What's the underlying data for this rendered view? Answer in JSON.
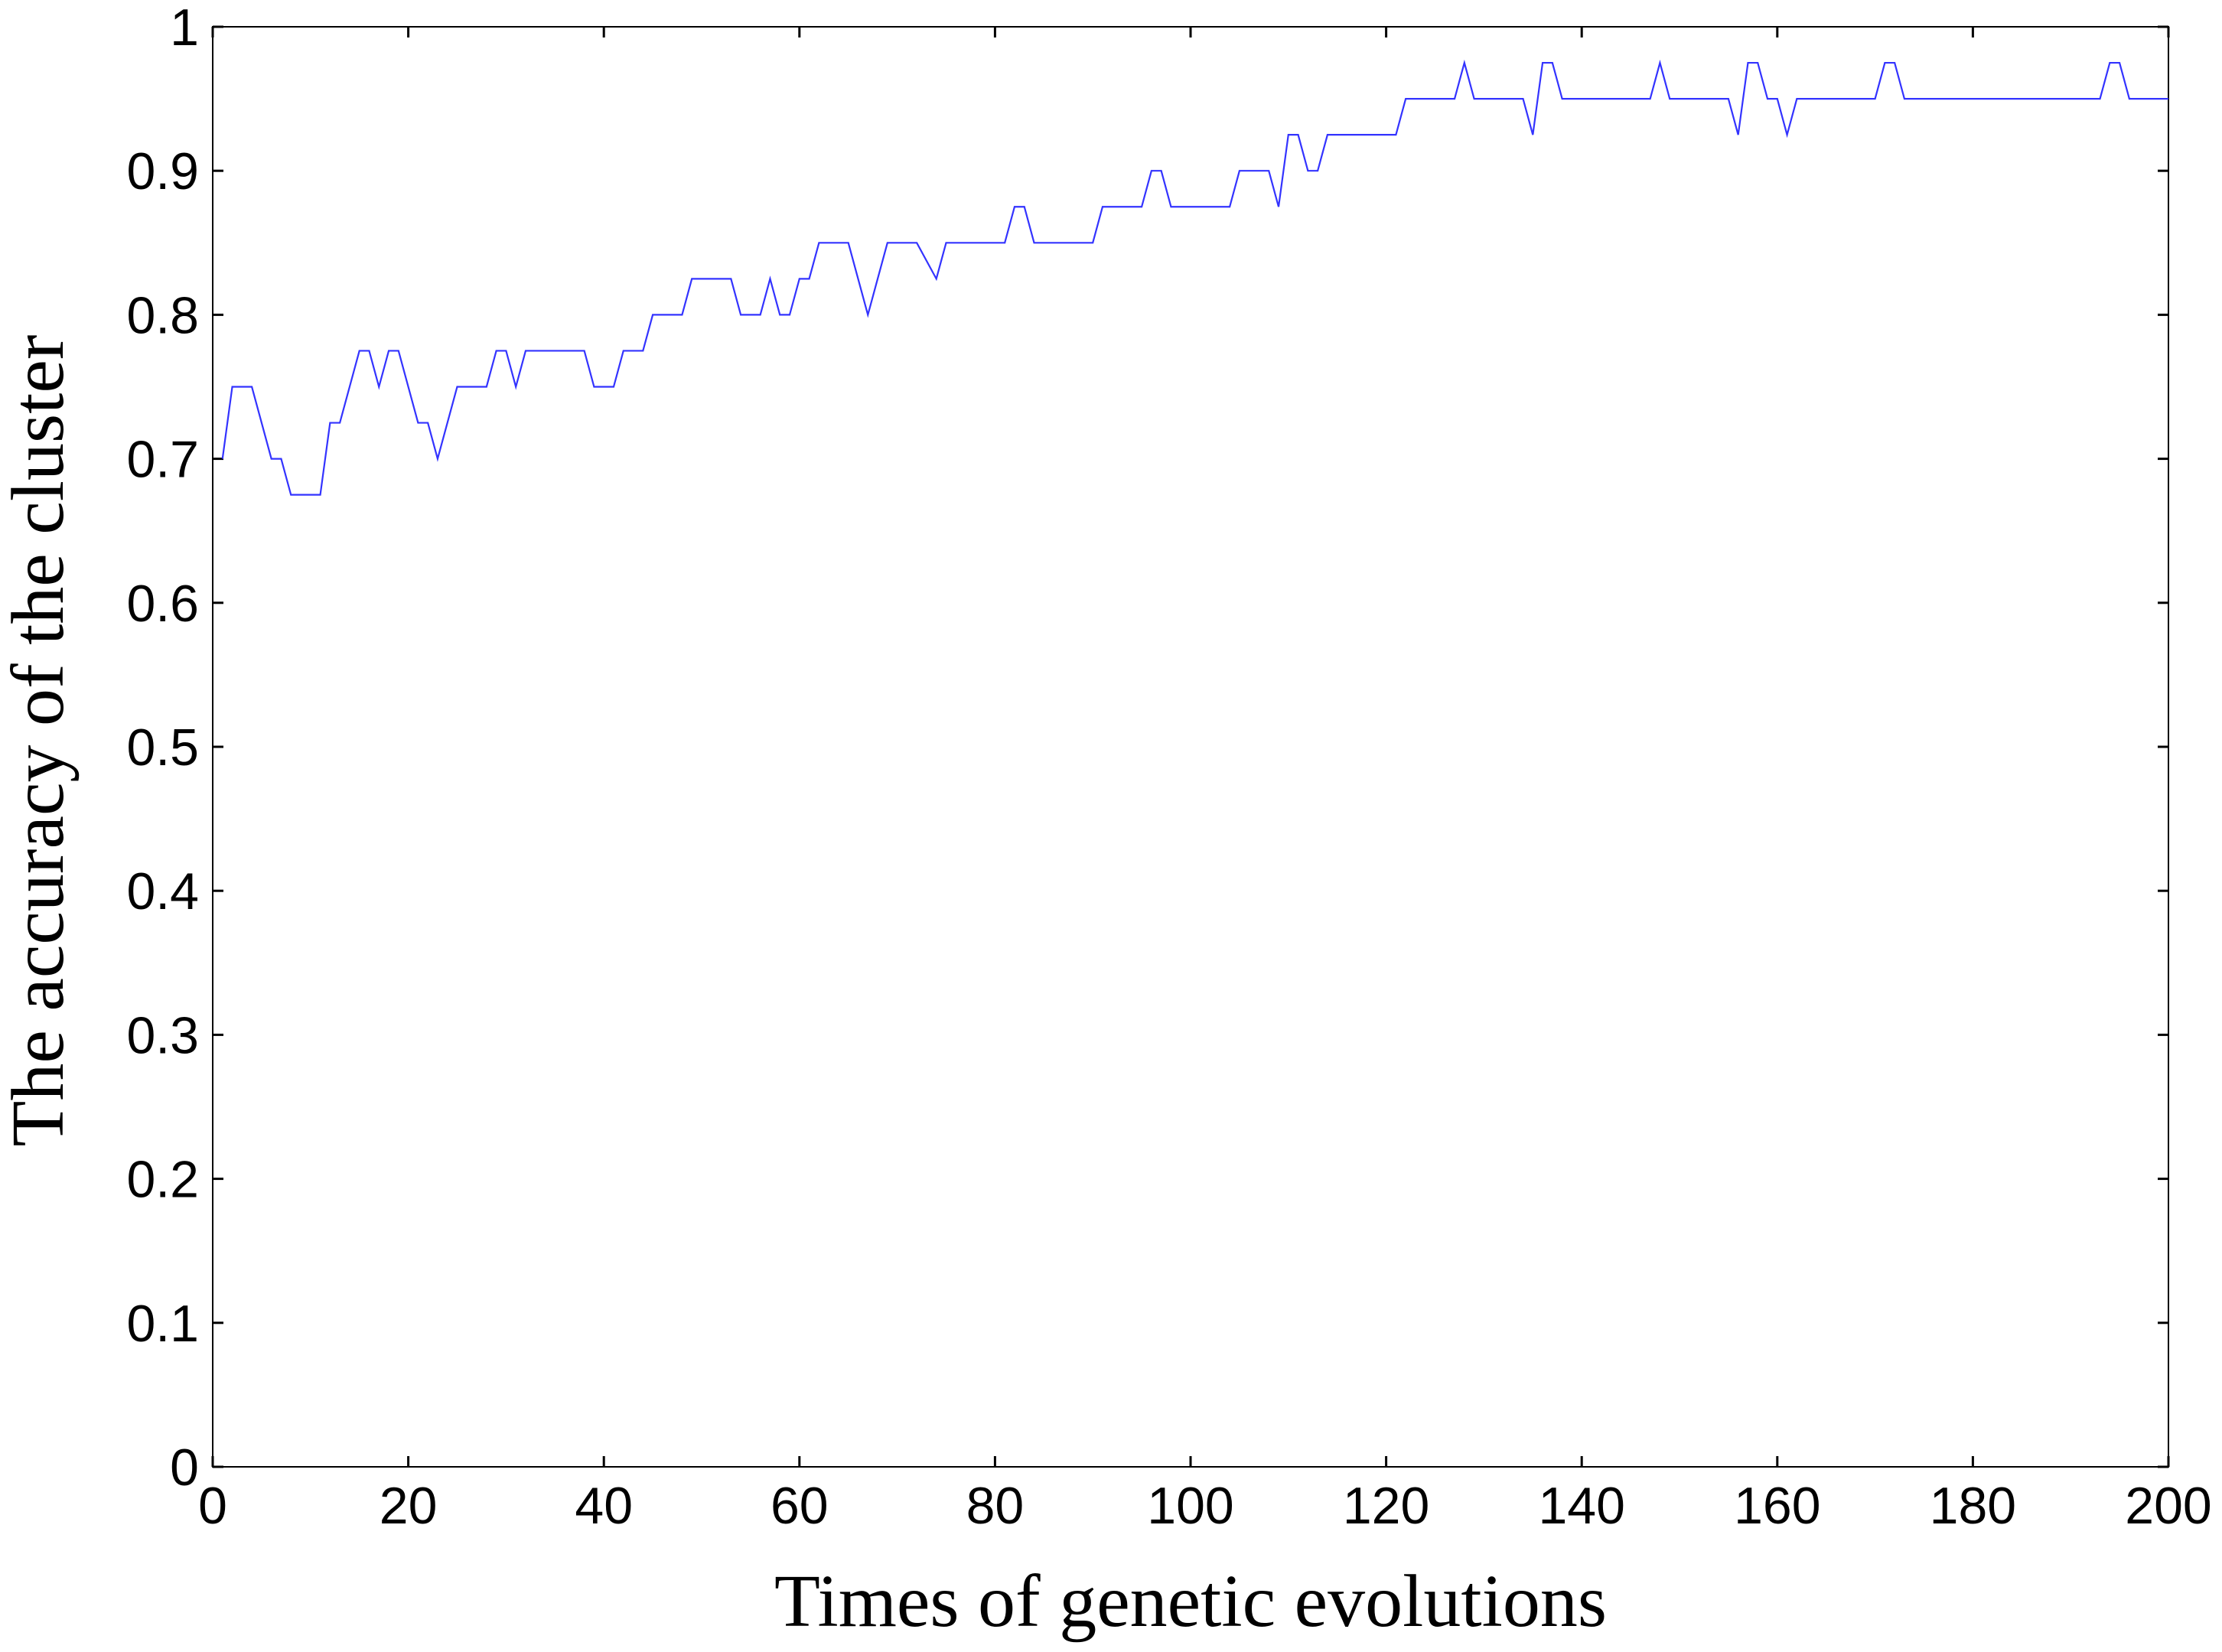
{
  "chart_data": {
    "type": "line",
    "xlabel": "Times of genetic evolutions",
    "ylabel": "The accuracy of the cluster",
    "x": [
      1,
      2,
      4,
      6,
      7,
      8,
      11,
      12,
      13,
      14,
      15,
      16,
      17,
      18,
      19,
      21,
      22,
      23,
      25,
      28,
      29,
      30,
      31,
      32,
      38,
      39,
      41,
      42,
      44,
      45,
      48,
      49,
      53,
      54,
      56,
      57,
      58,
      59,
      60,
      61,
      62,
      65,
      67,
      69,
      72,
      74,
      75,
      81,
      82,
      83,
      84,
      90,
      91,
      95,
      96,
      97,
      98,
      104,
      105,
      108,
      109,
      110,
      111,
      112,
      113,
      114,
      121,
      122,
      127,
      128,
      129,
      134,
      135,
      136,
      137,
      138,
      147,
      148,
      149,
      155,
      156,
      157,
      158,
      159,
      160,
      161,
      162,
      170,
      171,
      172,
      173,
      193,
      194,
      195,
      196,
      200
    ],
    "series": [
      {
        "color": "#3333ff",
        "values": [
          0.7,
          0.75,
          0.75,
          0.7,
          0.7,
          0.675,
          0.675,
          0.725,
          0.725,
          0.75,
          0.775,
          0.775,
          0.75,
          0.775,
          0.775,
          0.725,
          0.725,
          0.7,
          0.75,
          0.75,
          0.775,
          0.775,
          0.75,
          0.775,
          0.775,
          0.75,
          0.75,
          0.775,
          0.775,
          0.8,
          0.8,
          0.825,
          0.825,
          0.8,
          0.8,
          0.825,
          0.8,
          0.8,
          0.825,
          0.825,
          0.85,
          0.85,
          0.8,
          0.85,
          0.85,
          0.825,
          0.85,
          0.85,
          0.875,
          0.875,
          0.85,
          0.85,
          0.875,
          0.875,
          0.9,
          0.9,
          0.875,
          0.875,
          0.9,
          0.9,
          0.875,
          0.925,
          0.925,
          0.9,
          0.9,
          0.925,
          0.925,
          0.95,
          0.95,
          0.975,
          0.95,
          0.95,
          0.925,
          0.975,
          0.975,
          0.95,
          0.95,
          0.975,
          0.95,
          0.95,
          0.925,
          0.975,
          0.975,
          0.95,
          0.95,
          0.925,
          0.95,
          0.95,
          0.975,
          0.975,
          0.95,
          0.95,
          0.975,
          0.975,
          0.95,
          0.95
        ]
      }
    ],
    "xlim": [
      0,
      200
    ],
    "xticks": [
      0,
      20,
      40,
      60,
      80,
      100,
      120,
      140,
      160,
      180,
      200
    ],
    "ylim": [
      0,
      1
    ],
    "yticks": [
      0,
      0.1,
      0.2,
      0.3,
      0.4,
      0.5,
      0.6,
      0.7,
      0.8,
      0.9,
      1
    ],
    "grid": false
  }
}
